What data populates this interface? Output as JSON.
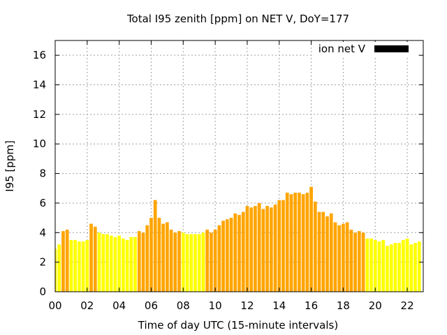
{
  "chart_data": {
    "type": "bar",
    "title": "Total I95 zenith [ppm] on NET V, DoY=177",
    "xlabel": "Time of day UTC (15-minute intervals)",
    "ylabel": "I95 [ppm]",
    "legend": {
      "label": "ion net V",
      "position": "top-right",
      "swatch_color": "#000000"
    },
    "ylim": [
      0,
      17
    ],
    "yticks": [
      "0",
      "2",
      "4",
      "6",
      "8",
      "10",
      "12",
      "14",
      "16"
    ],
    "xticks": [
      "00",
      "02",
      "04",
      "06",
      "08",
      "10",
      "12",
      "14",
      "16",
      "18",
      "20",
      "22"
    ],
    "xlim_hours": [
      0,
      23
    ],
    "grid": true,
    "colors": {
      "quiet": "#ffff00",
      "active": "#ffa500",
      "edge": "#dddd00"
    },
    "categories_hours": [
      0.0,
      0.25,
      0.5,
      0.75,
      1.0,
      1.25,
      1.5,
      1.75,
      2.0,
      2.25,
      2.5,
      2.75,
      3.0,
      3.25,
      3.5,
      3.75,
      4.0,
      4.25,
      4.5,
      4.75,
      5.0,
      5.25,
      5.5,
      5.75,
      6.0,
      6.25,
      6.5,
      6.75,
      7.0,
      7.25,
      7.5,
      7.75,
      8.0,
      8.25,
      8.5,
      8.75,
      9.0,
      9.25,
      9.5,
      9.75,
      10.0,
      10.25,
      10.5,
      10.75,
      11.0,
      11.25,
      11.5,
      11.75,
      12.0,
      12.25,
      12.5,
      12.75,
      13.0,
      13.25,
      13.5,
      13.75,
      14.0,
      14.25,
      14.5,
      14.75,
      15.0,
      15.25,
      15.5,
      15.75,
      16.0,
      16.25,
      16.5,
      16.75,
      17.0,
      17.25,
      17.5,
      17.75,
      18.0,
      18.25,
      18.5,
      18.75,
      19.0,
      19.25,
      19.5,
      19.75,
      20.0,
      20.25,
      20.5,
      20.75,
      21.0,
      21.25,
      21.5,
      21.75,
      22.0,
      22.25,
      22.5,
      22.75
    ],
    "values": [
      2.9,
      3.2,
      4.1,
      4.2,
      3.5,
      3.5,
      3.4,
      3.4,
      3.5,
      4.6,
      4.4,
      4.0,
      3.9,
      3.9,
      3.8,
      3.7,
      3.8,
      3.6,
      3.5,
      3.7,
      3.7,
      4.1,
      4.0,
      4.5,
      5.0,
      6.2,
      5.0,
      4.6,
      4.7,
      4.2,
      4.0,
      4.1,
      4.0,
      3.9,
      3.9,
      3.9,
      3.9,
      4.0,
      4.2,
      4.0,
      4.2,
      4.5,
      4.8,
      4.9,
      5.0,
      5.3,
      5.2,
      5.4,
      5.8,
      5.7,
      5.8,
      6.0,
      5.6,
      5.8,
      5.7,
      5.9,
      6.2,
      6.2,
      6.7,
      6.6,
      6.7,
      6.7,
      6.6,
      6.7,
      7.1,
      6.1,
      5.4,
      5.4,
      5.1,
      5.3,
      4.7,
      4.5,
      4.6,
      4.7,
      4.2,
      4.0,
      4.1,
      4.0,
      3.6,
      3.6,
      3.5,
      3.4,
      3.5,
      3.1,
      3.2,
      3.3,
      3.3,
      3.5,
      3.6,
      3.2,
      3.3,
      3.4
    ],
    "levels": [
      "quiet",
      "quiet",
      "active",
      "active",
      "quiet",
      "quiet",
      "quiet",
      "quiet",
      "quiet",
      "active",
      "active",
      "quiet",
      "quiet",
      "quiet",
      "quiet",
      "quiet",
      "quiet",
      "quiet",
      "quiet",
      "quiet",
      "quiet",
      "active",
      "active",
      "active",
      "active",
      "active",
      "active",
      "active",
      "active",
      "active",
      "active",
      "active",
      "quiet",
      "quiet",
      "quiet",
      "quiet",
      "quiet",
      "quiet",
      "active",
      "active",
      "active",
      "active",
      "active",
      "active",
      "active",
      "active",
      "active",
      "active",
      "active",
      "active",
      "active",
      "active",
      "active",
      "active",
      "active",
      "active",
      "active",
      "active",
      "active",
      "active",
      "active",
      "active",
      "active",
      "active",
      "active",
      "active",
      "active",
      "active",
      "active",
      "active",
      "active",
      "active",
      "active",
      "active",
      "active",
      "active",
      "active",
      "active",
      "quiet",
      "quiet",
      "quiet",
      "quiet",
      "quiet",
      "quiet",
      "quiet",
      "quiet",
      "quiet",
      "quiet",
      "quiet",
      "quiet",
      "quiet",
      "quiet"
    ]
  }
}
